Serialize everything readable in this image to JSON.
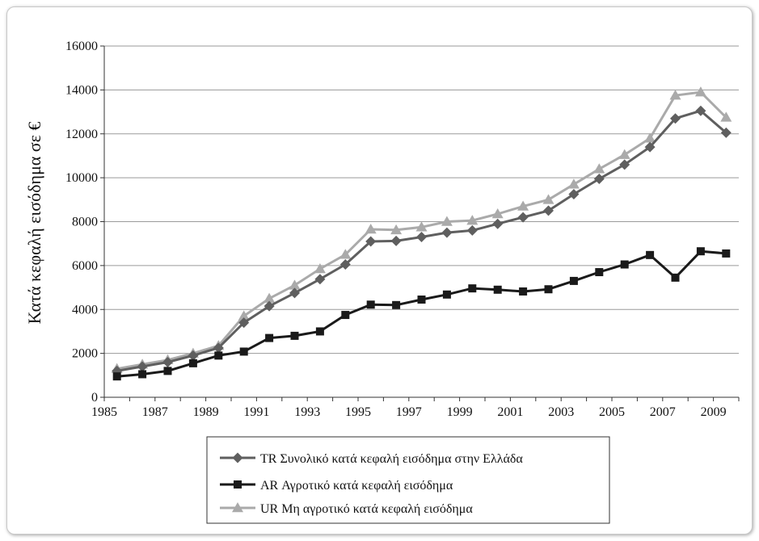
{
  "chart_data": {
    "type": "line",
    "ylabel": "Κατά κεφαλή εισόδημα  σε €",
    "xlabel": "",
    "title": "",
    "xlim": [
      1985,
      2010
    ],
    "ylim": [
      0,
      16000
    ],
    "x_ticks": [
      1985,
      1987,
      1989,
      1991,
      1993,
      1995,
      1997,
      1999,
      2001,
      2003,
      2005,
      2007,
      2009
    ],
    "y_ticks": [
      0,
      2000,
      4000,
      6000,
      8000,
      10000,
      12000,
      14000,
      16000
    ],
    "grid": "horizontal",
    "legend_position": "bottom",
    "x": [
      1985.5,
      1986.5,
      1987.5,
      1988.5,
      1989.5,
      1990.5,
      1991.5,
      1992.5,
      1993.5,
      1994.5,
      1995.5,
      1996.5,
      1997.5,
      1998.5,
      1999.5,
      2000.5,
      2001.5,
      2002.5,
      2003.5,
      2004.5,
      2005.5,
      2006.5,
      2007.5,
      2008.5,
      2009.5
    ],
    "series": [
      {
        "name": "TR Συνολικό κατά κεφαλή εισόδημα στην Ελλάδα",
        "color": "#5f5f5f",
        "marker": "diamond",
        "values": [
          1200,
          1400,
          1600,
          1900,
          2250,
          3400,
          4150,
          4750,
          5380,
          6050,
          7100,
          7120,
          7300,
          7500,
          7600,
          7900,
          8200,
          8500,
          9250,
          9950,
          10600,
          11400,
          12700,
          13050,
          12050
        ]
      },
      {
        "name": "AR Αγροτικό κατά κεφαλή εισόδημα",
        "color": "#1a1a1a",
        "marker": "square",
        "values": [
          950,
          1050,
          1200,
          1550,
          1900,
          2080,
          2700,
          2800,
          3000,
          3750,
          4220,
          4200,
          4450,
          4680,
          4960,
          4900,
          4820,
          4920,
          5300,
          5700,
          6050,
          6480,
          5450,
          6650,
          6550
        ]
      },
      {
        "name": "UR Μη αγροτικό κατά κεφαλή εισόδημα",
        "color": "#aaaaaa",
        "marker": "triangle",
        "values": [
          1300,
          1500,
          1700,
          2000,
          2350,
          3700,
          4500,
          5100,
          5850,
          6500,
          7650,
          7620,
          7750,
          8000,
          8050,
          8350,
          8700,
          9000,
          9700,
          10400,
          11050,
          11800,
          13750,
          13900,
          12750
        ]
      }
    ]
  }
}
